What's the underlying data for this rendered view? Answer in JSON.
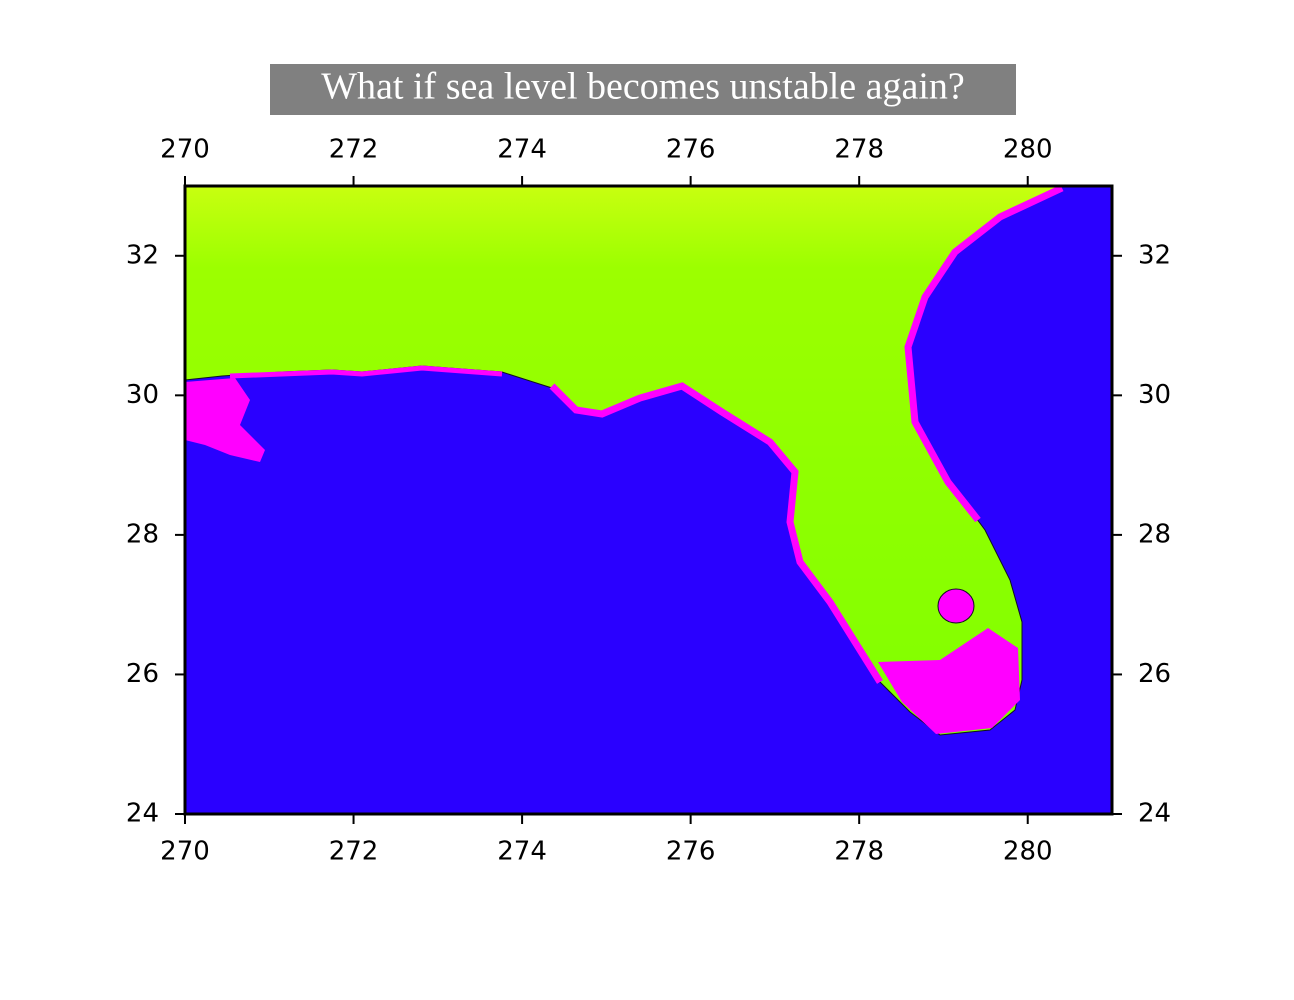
{
  "chart_data": {
    "type": "map",
    "title": "What if sea level becomes unstable again?",
    "xlim": [
      270,
      281
    ],
    "ylim": [
      24,
      33
    ],
    "xticks": [
      270,
      272,
      274,
      276,
      278,
      280
    ],
    "yticks": [
      24,
      26,
      28,
      30,
      32
    ]
  }
}
